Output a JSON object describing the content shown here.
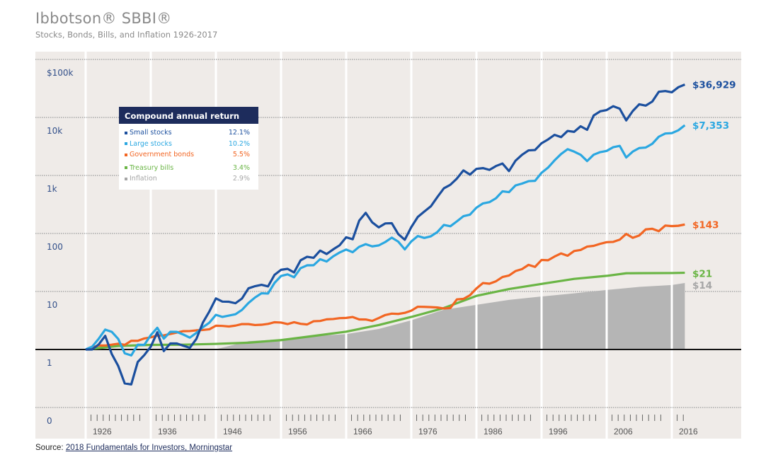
{
  "chart_data": {
    "type": "line",
    "title": "Ibbotson® SBBI®",
    "subtitle": "Stocks, Bonds, Bills, and Inflation 1926-2017",
    "y_scale": "log",
    "y_tick_labels": [
      {
        "value": 100000,
        "label": "$100k"
      },
      {
        "value": 10000,
        "label": "10k"
      },
      {
        "value": 1000,
        "label": "1k"
      },
      {
        "value": 100,
        "label": "100"
      },
      {
        "value": 10,
        "label": "10"
      },
      {
        "value": 1,
        "label": "1"
      },
      {
        "value": 0.1,
        "label": "0"
      }
    ],
    "x_tick_labels": [
      "1926",
      "1936",
      "1946",
      "1956",
      "1966",
      "1976",
      "1986",
      "1996",
      "2006",
      "2016"
    ],
    "grid": true,
    "legend": {
      "title": "Compound annual return",
      "position": "top-left"
    },
    "series": [
      {
        "name": "Small stocks",
        "return": "12.1%",
        "end_label": "$36,929",
        "color": "#1b4f9e",
        "x": [
          1925,
          1926,
          1927,
          1928,
          1929,
          1930,
          1931,
          1932,
          1933,
          1934,
          1935,
          1936,
          1937,
          1938,
          1939,
          1940,
          1941,
          1942,
          1943,
          1944,
          1945,
          1946,
          1947,
          1948,
          1949,
          1950,
          1951,
          1952,
          1953,
          1954,
          1955,
          1956,
          1957,
          1958,
          1959,
          1960,
          1961,
          1962,
          1963,
          1964,
          1965,
          1966,
          1967,
          1968,
          1969,
          1970,
          1971,
          1972,
          1973,
          1974,
          1975,
          1976,
          1977,
          1978,
          1979,
          1980,
          1981,
          1982,
          1983,
          1984,
          1985,
          1986,
          1987,
          1988,
          1989,
          1990,
          1991,
          1992,
          1993,
          1994,
          1995,
          1996,
          1997,
          1998,
          1999,
          2000,
          2001,
          2002,
          2003,
          2004,
          2005,
          2006,
          2007,
          2008,
          2009,
          2010,
          2011,
          2012,
          2013,
          2014,
          2015,
          2016,
          2017
        ],
        "values": [
          1,
          1.0,
          1.22,
          1.72,
          0.84,
          0.52,
          0.26,
          0.25,
          0.61,
          0.8,
          1.12,
          1.98,
          0.94,
          1.27,
          1.27,
          1.16,
          1.07,
          1.52,
          2.91,
          4.54,
          7.59,
          6.69,
          6.65,
          6.27,
          7.55,
          11.33,
          12.33,
          13.04,
          12.22,
          19.35,
          23.62,
          24.55,
          21.28,
          34.44,
          39.68,
          37.99,
          50.66,
          44.22,
          53.11,
          62.62,
          85.93,
          79.52,
          166.5,
          226.6,
          155.3,
          127.4,
          148.9,
          150.4,
          97.33,
          77.95,
          128.7,
          192.6,
          238.6,
          293.4,
          423.7,
          600.1,
          691.3,
          883,
          1221,
          1035,
          1300,
          1339,
          1248,
          1453,
          1605,
          1190,
          1793,
          2271,
          2707,
          2745,
          3593,
          4174,
          5014,
          4580,
          5857,
          5643,
          7037,
          6122,
          10810,
          12746,
          13416,
          15624,
          14153,
          8893,
          12870,
          16864,
          16002,
          18775,
          27706,
          28517,
          27145,
          33152,
          36929
        ]
      },
      {
        "name": "Large stocks",
        "return": "10.2%",
        "end_label": "$7,353",
        "color": "#2aa7e1",
        "x": [
          1925,
          1926,
          1927,
          1928,
          1929,
          1930,
          1931,
          1932,
          1933,
          1934,
          1935,
          1936,
          1937,
          1938,
          1939,
          1940,
          1941,
          1942,
          1943,
          1944,
          1945,
          1946,
          1947,
          1948,
          1949,
          1950,
          1951,
          1952,
          1953,
          1954,
          1955,
          1956,
          1957,
          1958,
          1959,
          1960,
          1961,
          1962,
          1963,
          1964,
          1965,
          1966,
          1967,
          1968,
          1969,
          1970,
          1971,
          1972,
          1973,
          1974,
          1975,
          1976,
          1977,
          1978,
          1979,
          1980,
          1981,
          1982,
          1983,
          1984,
          1985,
          1986,
          1987,
          1988,
          1989,
          1990,
          1991,
          1992,
          1993,
          1994,
          1995,
          1996,
          1997,
          1998,
          1999,
          2000,
          2001,
          2002,
          2003,
          2004,
          2005,
          2006,
          2007,
          2008,
          2009,
          2010,
          2011,
          2012,
          2013,
          2014,
          2015,
          2016,
          2017
        ],
        "values": [
          1,
          1.12,
          1.53,
          2.2,
          2.02,
          1.52,
          0.86,
          0.79,
          1.21,
          1.2,
          1.77,
          2.37,
          1.54,
          2.02,
          2.01,
          1.81,
          1.6,
          1.93,
          2.42,
          2.9,
          3.96,
          3.64,
          3.84,
          4.05,
          4.81,
          6.34,
          7.86,
          9.3,
          9.21,
          14.06,
          18.5,
          19.71,
          17.59,
          25.22,
          28.24,
          28.37,
          36,
          32.86,
          40.35,
          47,
          52.85,
          47.53,
          58.93,
          65.45,
          59.88,
          62.27,
          71.17,
          84.68,
          72.27,
          53.14,
          72.92,
          90.3,
          83.82,
          89.32,
          105.8,
          140.1,
          133.2,
          161.9,
          198.4,
          210.8,
          278.4,
          329.6,
          346.7,
          404.3,
          532.2,
          515.6,
          672.6,
          723.9,
          796.9,
          807.4,
          1110.9,
          1366,
          1822,
          2343,
          2836,
          2578,
          2272,
          1770,
          2278,
          2525,
          2649,
          3068,
          3236,
          2039,
          2578,
          2967,
          3029,
          3514,
          4652,
          5288,
          5361,
          6002,
          7353
        ]
      },
      {
        "name": "Government bonds",
        "return": "5.5%",
        "end_label": "$143",
        "color": "#f26522",
        "x": [
          1925,
          1926,
          1927,
          1928,
          1929,
          1930,
          1931,
          1932,
          1933,
          1934,
          1935,
          1936,
          1937,
          1938,
          1939,
          1940,
          1941,
          1942,
          1943,
          1944,
          1945,
          1946,
          1947,
          1948,
          1949,
          1950,
          1951,
          1952,
          1953,
          1954,
          1955,
          1956,
          1957,
          1958,
          1959,
          1960,
          1961,
          1962,
          1963,
          1964,
          1965,
          1966,
          1967,
          1968,
          1969,
          1970,
          1971,
          1972,
          1973,
          1974,
          1975,
          1976,
          1977,
          1978,
          1979,
          1980,
          1981,
          1982,
          1983,
          1984,
          1985,
          1986,
          1987,
          1988,
          1989,
          1990,
          1991,
          1992,
          1993,
          1994,
          1995,
          1996,
          1997,
          1998,
          1999,
          2000,
          2001,
          2002,
          2003,
          2004,
          2005,
          2006,
          2007,
          2008,
          2009,
          2010,
          2011,
          2012,
          2013,
          2014,
          2015,
          2016,
          2017
        ],
        "values": [
          1,
          1.08,
          1.17,
          1.17,
          1.21,
          1.26,
          1.2,
          1.41,
          1.41,
          1.55,
          1.62,
          1.74,
          1.75,
          1.85,
          1.96,
          2.07,
          2.08,
          2.14,
          2.17,
          2.23,
          2.57,
          2.55,
          2.49,
          2.58,
          2.74,
          2.74,
          2.64,
          2.67,
          2.76,
          2.95,
          2.91,
          2.74,
          2.95,
          2.77,
          2.7,
          3.07,
          3.1,
          3.31,
          3.35,
          3.47,
          3.5,
          3.63,
          3.3,
          3.29,
          3.11,
          3.48,
          3.93,
          4.15,
          4.1,
          4.28,
          4.67,
          5.46,
          5.43,
          5.37,
          5.3,
          5.09,
          5.19,
          7.31,
          7.45,
          8.6,
          11.27,
          13.99,
          13.62,
          14.99,
          17.74,
          18.85,
          22.49,
          24.31,
          28.77,
          26.53,
          34.94,
          34.54,
          40.05,
          45.28,
          41.35,
          49.79,
          51.98,
          59.41,
          61.17,
          66.32,
          70.79,
          71.57,
          78.15,
          98.4,
          84.15,
          92.38,
          117.6,
          120.5,
          109.6,
          137,
          133.8,
          135.7,
          143
        ]
      },
      {
        "name": "Treasury bills",
        "return": "3.4%",
        "end_label": "$21",
        "color": "#6ab545",
        "x": [
          1925,
          1926,
          1930,
          1935,
          1940,
          1945,
          1950,
          1955,
          1960,
          1965,
          1970,
          1975,
          1980,
          1985,
          1990,
          1995,
          2000,
          2005,
          2008,
          2010,
          2015,
          2017
        ],
        "values": [
          1,
          1.03,
          1.15,
          1.2,
          1.21,
          1.25,
          1.31,
          1.45,
          1.71,
          2.03,
          2.64,
          3.64,
          5.18,
          8.4,
          11.0,
          13.5,
          16.5,
          18.6,
          20.6,
          20.7,
          20.8,
          21
        ]
      },
      {
        "name": "Inflation",
        "return": "2.9%",
        "end_label": "$14",
        "color": "#a6a6a6",
        "x": [
          1925,
          1926,
          1930,
          1933,
          1935,
          1940,
          1942,
          1945,
          1950,
          1955,
          1960,
          1965,
          1970,
          1975,
          1980,
          1985,
          1990,
          1995,
          2000,
          2005,
          2010,
          2015,
          2017
        ],
        "values": [
          1,
          0.99,
          0.9,
          0.76,
          0.81,
          0.82,
          0.96,
          1.01,
          1.39,
          1.5,
          1.7,
          1.84,
          2.26,
          3.19,
          4.85,
          5.88,
          7.16,
          8.2,
          9.3,
          10.6,
          12.0,
          12.9,
          14
        ]
      }
    ]
  },
  "source": {
    "label": "Source:",
    "link_text": "2018 Fundamentals for Investors, Morningstar"
  }
}
